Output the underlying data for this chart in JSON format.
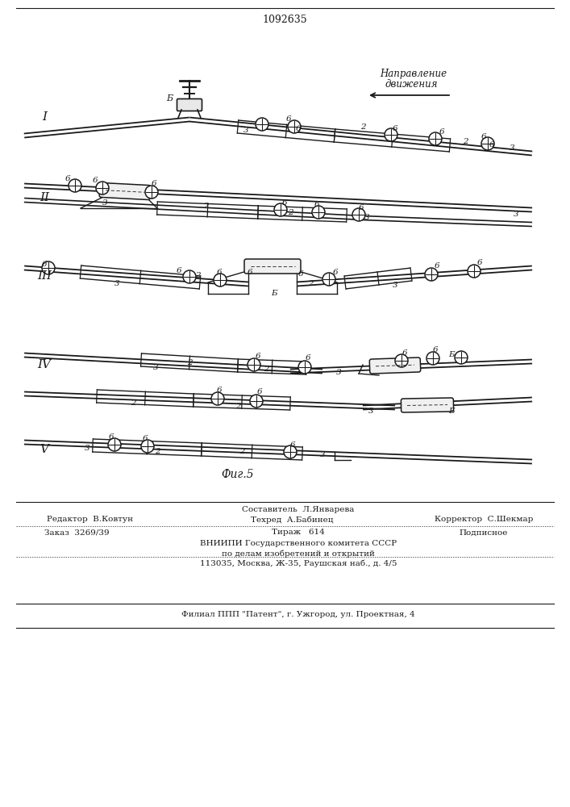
{
  "patent_number": "1092635",
  "fig_label": "Фиг.5",
  "direction_label": "Направление\nдвижения",
  "bg_color": "#ffffff",
  "line_color": "#1a1a1a",
  "footer": {
    "editor": "Редактор  В.Ковтун",
    "composer": "Составитель  Л.Январева",
    "techred": "Техред  А.Бабинец",
    "corrector": "Корректор  С.Шекмар",
    "order": "Заказ  3269/39",
    "tirazh": "Тираж   614",
    "podpisnoe": "Подписное",
    "org1": "ВНИИПИ Государственного комитета СССР",
    "org2": "по делам изобретений и открытий",
    "org3": "113035, Москва, Ж-35, Раушская наб., д. 4/5",
    "filial": "Филиал ППП \"Патент\", г. Ужгород, ул. Проектная, 4"
  }
}
